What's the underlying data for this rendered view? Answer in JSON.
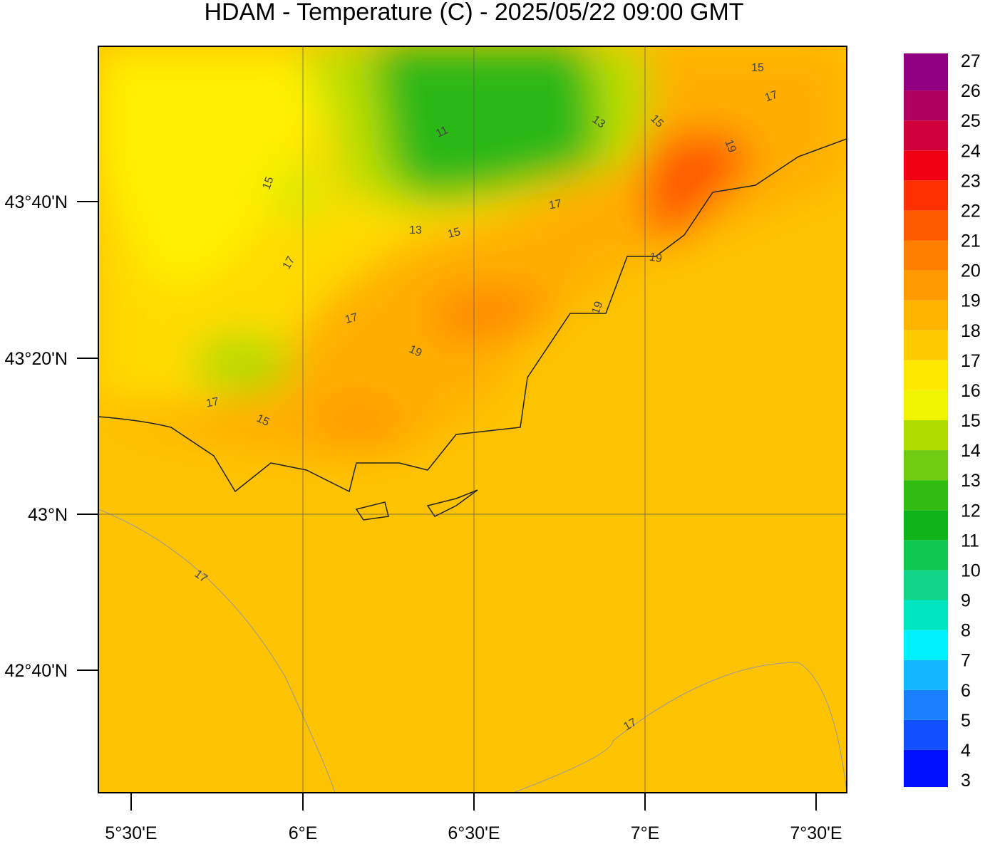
{
  "title": "HDAM - Temperature (C)  -  2025/05/22  09:00 GMT",
  "lon_labels": [
    "5°30'E",
    "6°E",
    "6°30'E",
    "7°E",
    "7°30'E"
  ],
  "lat_labels": [
    "43°40'N",
    "43°20'N",
    "43°N",
    "42°40'N"
  ],
  "colorbar": {
    "ticks": [
      3,
      4,
      5,
      6,
      7,
      8,
      9,
      10,
      11,
      12,
      13,
      14,
      15,
      16,
      17,
      18,
      19,
      20,
      21,
      22,
      23,
      24,
      25,
      26,
      27
    ],
    "colors": [
      "#0010ff",
      "#1050ff",
      "#1a80ff",
      "#10b8ff",
      "#00f0ff",
      "#00e6c0",
      "#10d488",
      "#10c850",
      "#10b418",
      "#30bc10",
      "#70cc10",
      "#b0dc00",
      "#f0f400",
      "#ffe800",
      "#ffcc00",
      "#ffb400",
      "#ff9a00",
      "#ff8000",
      "#ff5a00",
      "#ff3000",
      "#f00010",
      "#d0003a",
      "#b00060",
      "#900080"
    ]
  },
  "contour_labels": [
    15,
    17,
    13,
    15,
    11,
    13,
    15,
    19,
    17,
    15,
    17,
    17,
    19,
    17,
    15,
    19,
    19,
    17,
    17
  ]
}
